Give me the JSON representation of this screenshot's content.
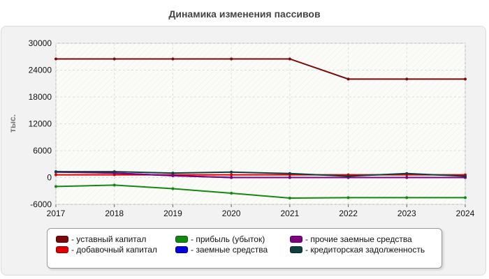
{
  "chart_data": {
    "type": "line",
    "title": "Динамика изменения пассивов",
    "ylabel": "тыс.",
    "x": [
      "2017",
      "2018",
      "2019",
      "2020",
      "2021",
      "2022",
      "2023",
      "2024"
    ],
    "ylim": [
      -6000,
      30000
    ],
    "yticks": [
      "30000",
      "24000",
      "18000",
      "12000",
      "6000",
      "0",
      "-6000"
    ],
    "ytick_values": [
      30000,
      24000,
      18000,
      12000,
      6000,
      0,
      -6000
    ],
    "grid": true,
    "legend_position": "bottom",
    "series": [
      {
        "name": "- уставный капитал",
        "color": "#7a0a0a",
        "values": [
          26500,
          26500,
          26500,
          26500,
          26500,
          22000,
          22000,
          22000
        ]
      },
      {
        "name": "- добавочный капитал",
        "color": "#e00000",
        "values": [
          600,
          600,
          600,
          600,
          600,
          600,
          600,
          600
        ]
      },
      {
        "name": "- прибыль (убыток)",
        "color": "#118a11",
        "values": [
          -2000,
          -1700,
          -2500,
          -3500,
          -4600,
          -4500,
          -4500,
          -4500
        ]
      },
      {
        "name": "- заемные средства",
        "color": "#0000e0",
        "values": [
          1300,
          1000,
          400,
          0,
          0,
          0,
          0,
          0
        ]
      },
      {
        "name": "- прочие заемные средства",
        "color": "#800080",
        "values": [
          1200,
          1000,
          400,
          0,
          0,
          0,
          0,
          0
        ]
      },
      {
        "name": "- кредиторская задолженность",
        "color": "#0f3f3f",
        "values": [
          1300,
          1300,
          1000,
          1200,
          900,
          300,
          900,
          300
        ]
      }
    ]
  }
}
